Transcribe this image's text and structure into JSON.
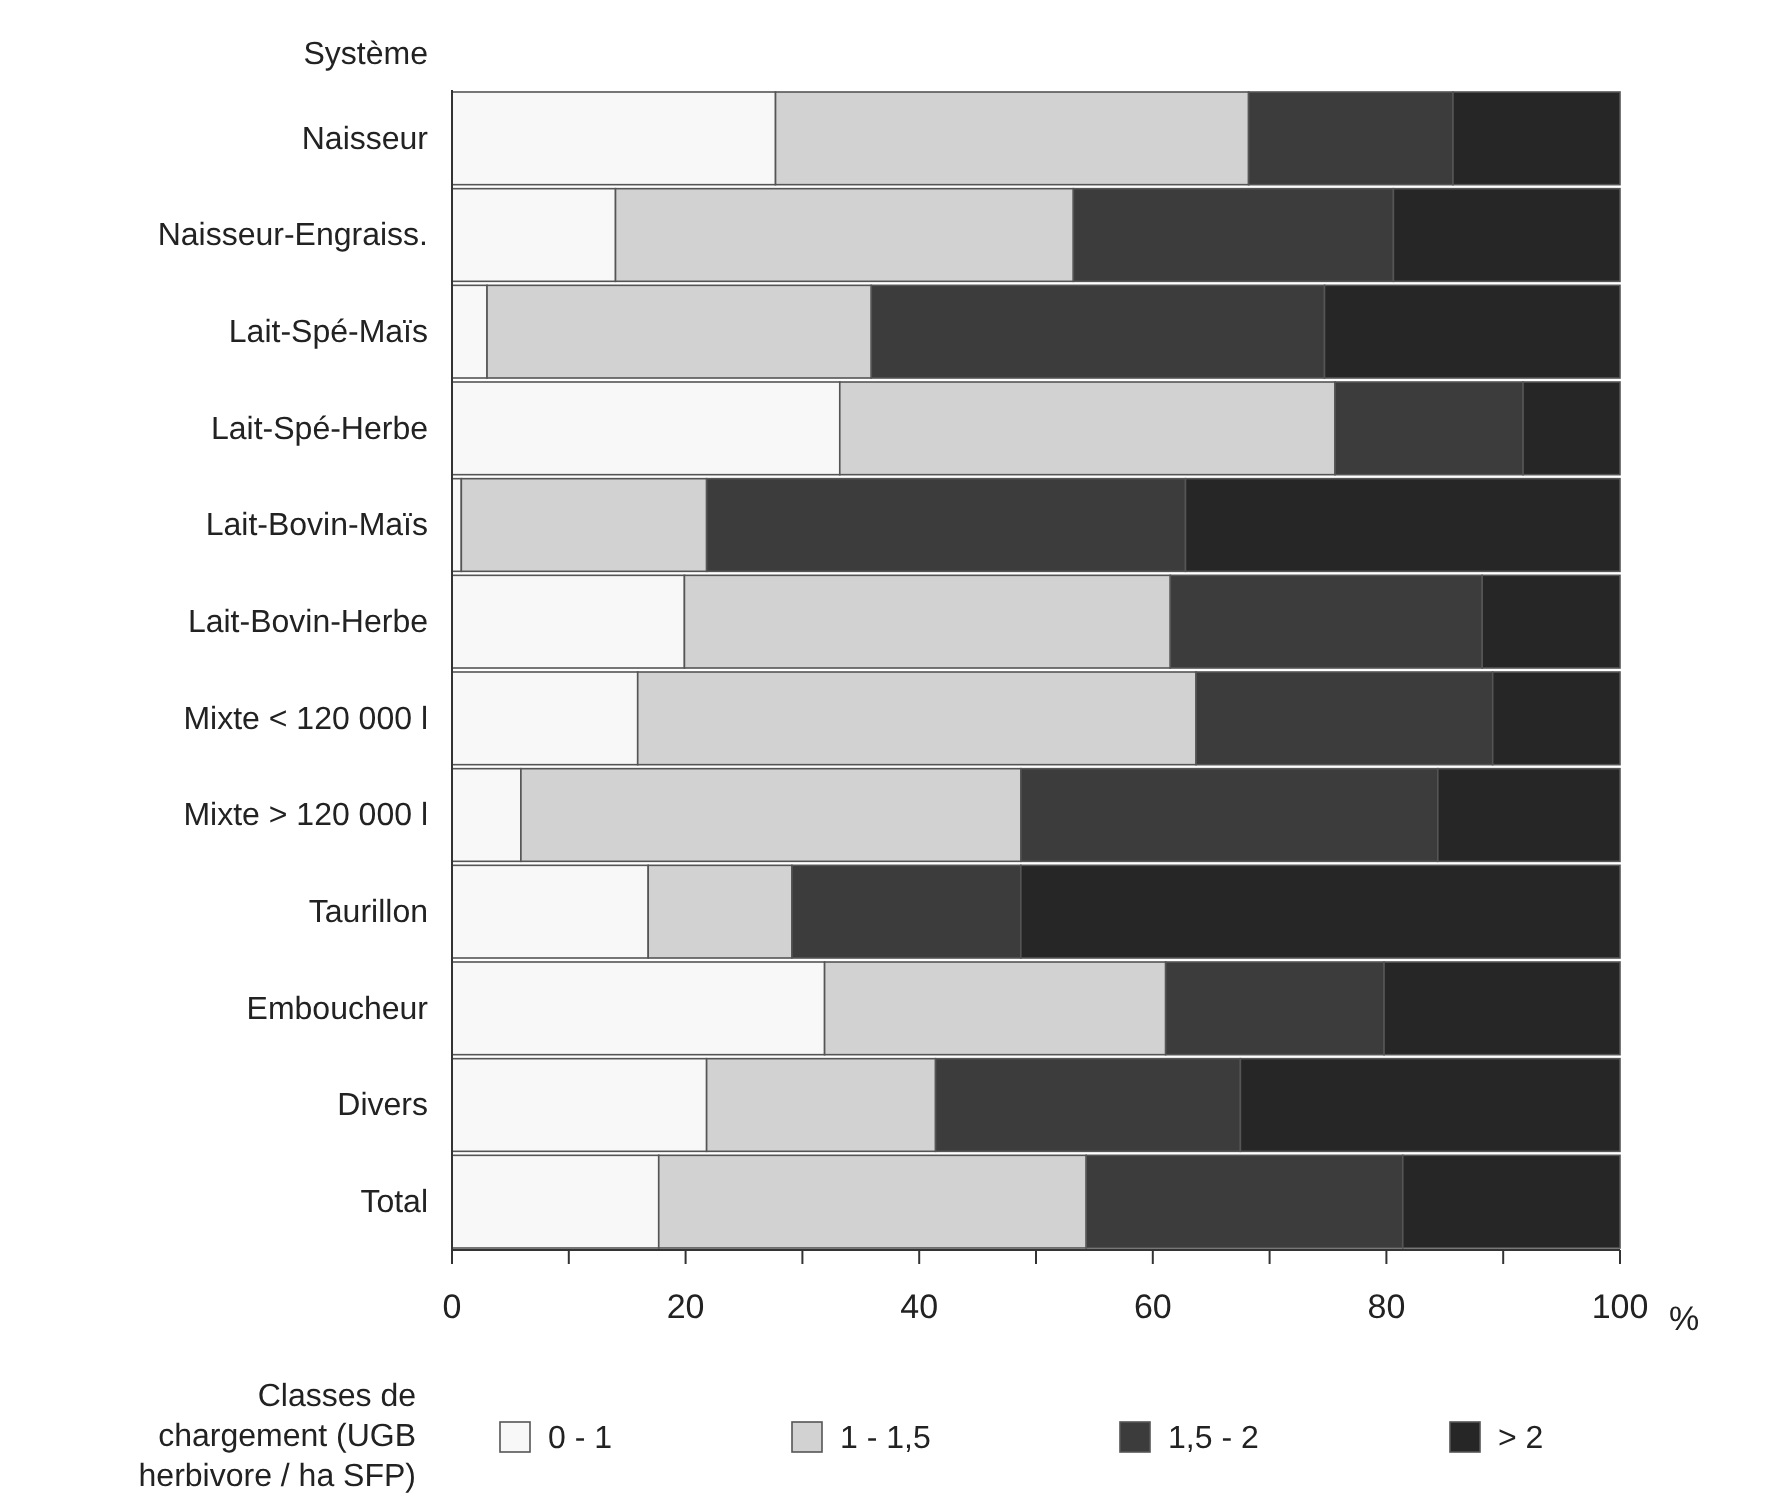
{
  "chart_data": {
    "type": "bar",
    "orientation": "horizontal",
    "stacked": true,
    "ylabel": "Système",
    "xlabel": "%",
    "legend_title": "Classes de chargement (UGB herbivore / ha SFP)",
    "legend": "bottom",
    "grid": false,
    "categories": [
      "Naisseur",
      "Naisseur-Engraiss.",
      "Lait-Spé-Maïs",
      "Lait-Spé-Herbe",
      "Lait-Bovin-Maïs",
      "Lait-Bovin-Herbe",
      "Mixte < 120 000 l",
      "Mixte > 120 000 l",
      "Taurillon",
      "Emboucheur",
      "Divers",
      "Total"
    ],
    "xlim": [
      0,
      100
    ],
    "xticks": [
      0,
      {
        "value": 10,
        "label": null
      },
      20,
      {
        "value": 30,
        "label": null
      },
      40,
      {
        "value": 50,
        "label": null
      },
      60,
      {
        "value": 70,
        "label": null
      },
      80,
      {
        "value": 90,
        "label": null
      },
      100
    ],
    "series": [
      {
        "name": "0 - 1",
        "color": "#f8f8f8",
        "values": [
          27.7,
          14.0,
          3.0,
          33.2,
          0.8,
          19.9,
          15.9,
          5.9,
          16.8,
          31.9,
          21.8,
          17.7
        ]
      },
      {
        "name": "1 - 1,5",
        "color": "#d2d2d2",
        "values": [
          40.5,
          39.2,
          32.9,
          42.4,
          21.0,
          41.6,
          47.8,
          42.8,
          12.3,
          29.2,
          19.6,
          36.6
        ]
      },
      {
        "name": "1,5 - 2",
        "color": "#3c3c3c",
        "values": [
          17.5,
          27.4,
          38.8,
          16.1,
          41.0,
          26.7,
          25.4,
          35.7,
          19.6,
          18.7,
          26.1,
          27.1
        ]
      },
      {
        "name": "> 2",
        "color": "#262626",
        "values": [
          14.3,
          19.4,
          25.3,
          8.3,
          37.2,
          11.8,
          10.9,
          15.6,
          51.3,
          20.2,
          32.5,
          18.6
        ]
      }
    ]
  }
}
